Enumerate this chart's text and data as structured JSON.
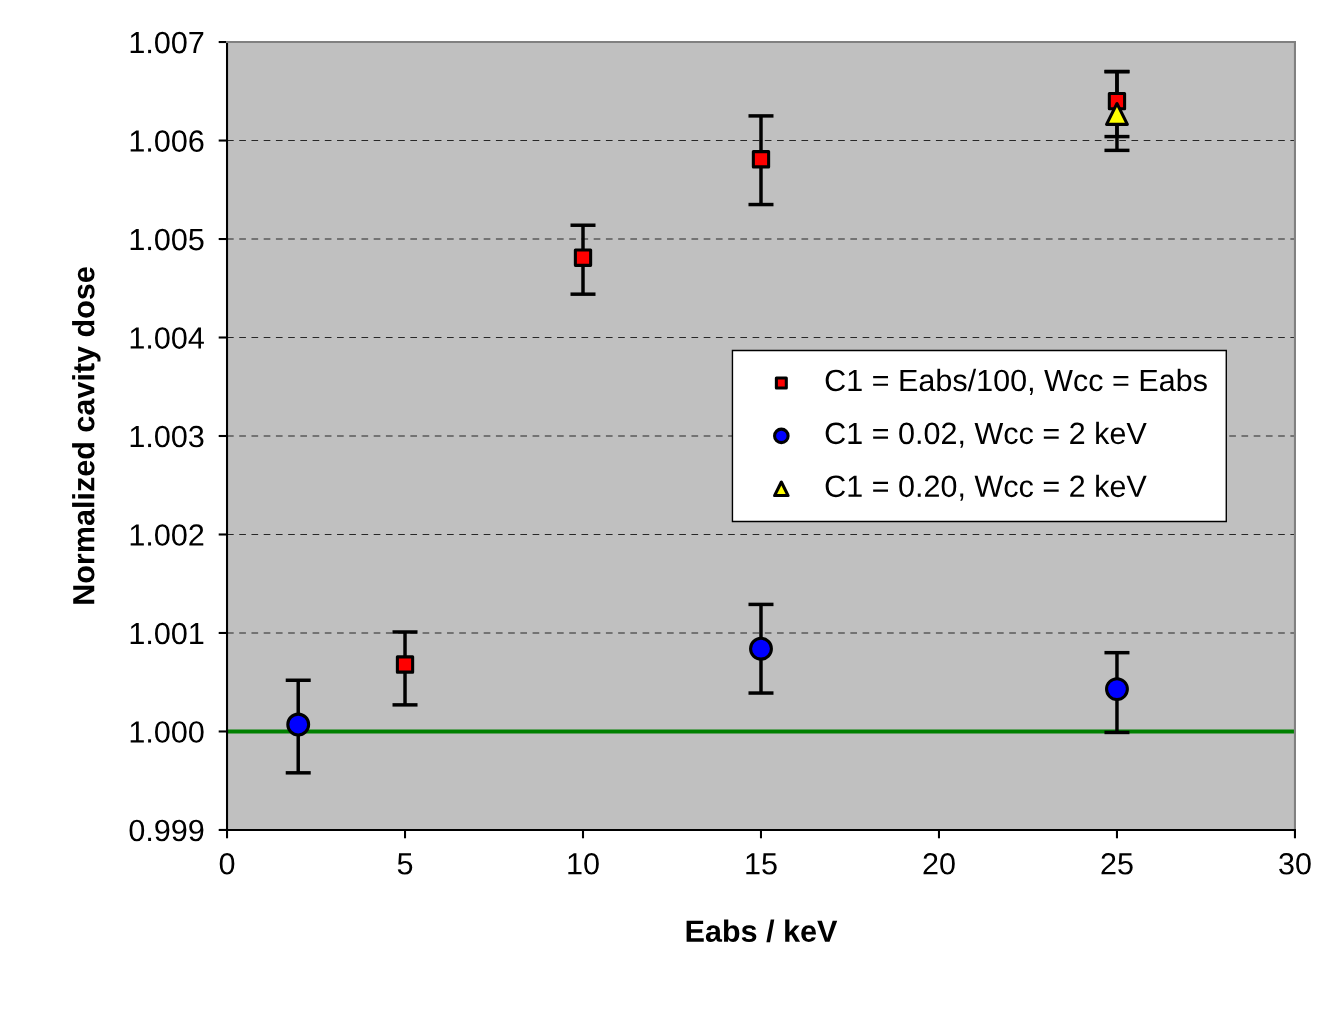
{
  "chart_data": {
    "type": "scatter",
    "xlabel": "Eabs / keV",
    "ylabel": "Normalized cavity dose",
    "xlim": [
      0,
      30
    ],
    "xticks": [
      0,
      5,
      10,
      15,
      20,
      25,
      30
    ],
    "ylim": [
      0.999,
      1.007
    ],
    "yticks": [
      {
        "value": 0.999,
        "label": "0.999"
      },
      {
        "value": 1.0,
        "label": "1.000"
      },
      {
        "value": 1.001,
        "label": "1.001"
      },
      {
        "value": 1.002,
        "label": "1.002"
      },
      {
        "value": 1.003,
        "label": "1.003"
      },
      {
        "value": 1.004,
        "label": "1.004"
      },
      {
        "value": 1.005,
        "label": "1.005"
      },
      {
        "value": 1.006,
        "label": "1.006"
      },
      {
        "value": 1.007,
        "label": "1.007"
      }
    ],
    "grid": "y",
    "legend": "right",
    "ref_lines": [
      {
        "axis": "y",
        "value": 1.0,
        "color": "#008000"
      }
    ],
    "series": [
      {
        "name": "C1 = Eabs/100, Wcc = Eabs",
        "color": "#ff0000",
        "marker": "square",
        "x": [
          5,
          10,
          15,
          25
        ],
        "values": [
          1.00068,
          1.00481,
          1.00581,
          1.0064
        ],
        "errors": [
          [
            1.00027,
            1.00101
          ],
          [
            1.00444,
            1.00514
          ],
          [
            1.00535,
            1.00625
          ],
          [
            1.00604,
            1.0067
          ]
        ]
      },
      {
        "name": "C1 = 0.02, Wcc = 2 keV",
        "color": "#0000ff",
        "marker": "circle",
        "x": [
          2,
          15,
          25
        ],
        "values": [
          1.00007,
          1.00084,
          1.00043
        ],
        "errors": [
          [
            0.99958,
            1.00052
          ],
          [
            1.00039,
            1.00129
          ],
          [
            0.99999,
            1.0008
          ]
        ]
      },
      {
        "name": "C1 = 0.20, Wcc = 2 keV",
        "color": "#ffff00",
        "marker": "triangle",
        "x": [
          25
        ],
        "values": [
          1.00627
        ],
        "errors": [
          [
            1.0059,
            1.0067
          ]
        ]
      }
    ]
  }
}
